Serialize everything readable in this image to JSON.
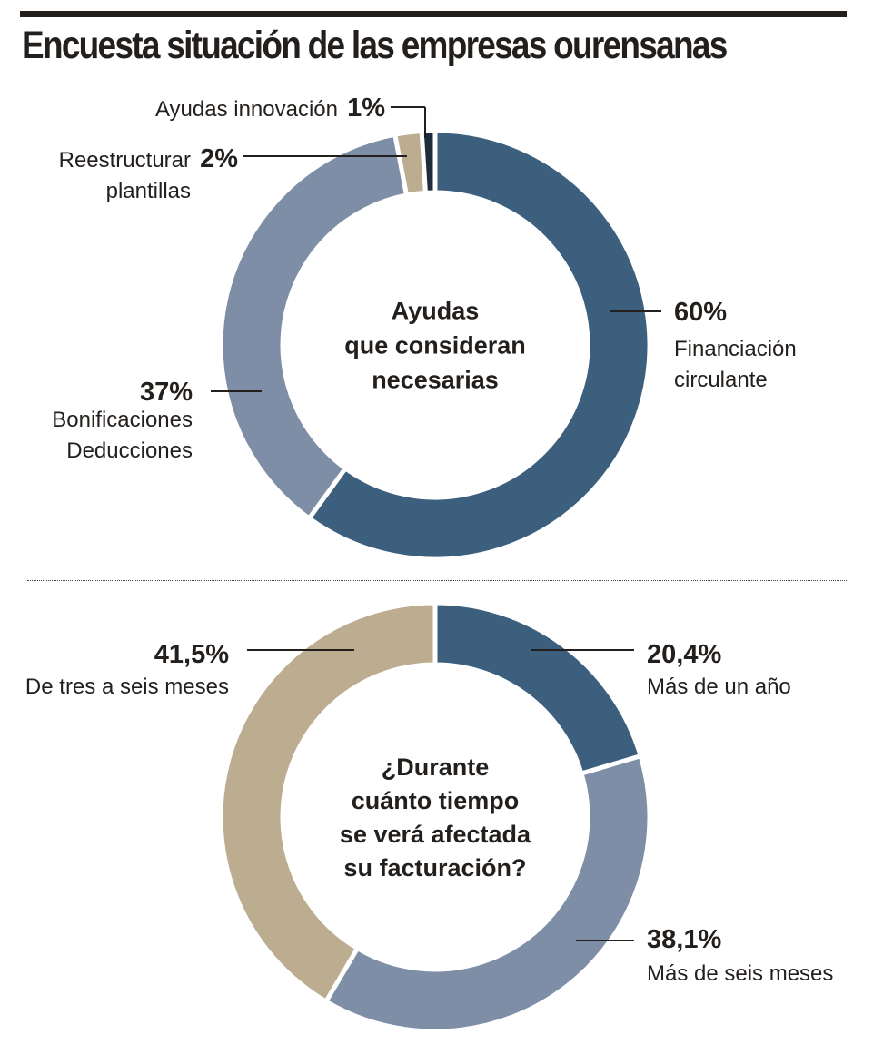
{
  "title": "Encuesta situación de las empresas ourensanas",
  "colors": {
    "dark_blue": "#3c5f7d",
    "gray_blue": "#7d8ea6",
    "beige": "#bcac90",
    "navy": "#1f2c3a",
    "text": "#231f1c"
  },
  "chart_data": [
    {
      "type": "pie",
      "variant": "donut",
      "center_label": [
        "Ayudas",
        "que consideran",
        "necesarias"
      ],
      "slices": [
        {
          "value_label": "60%",
          "value": 60,
          "label": [
            "Financiación",
            "circulante"
          ],
          "color": "#3c5f7d"
        },
        {
          "value_label": "37%",
          "value": 37,
          "label": [
            "Bonificaciones",
            "Deducciones"
          ],
          "color": "#7d8ea6"
        },
        {
          "value_label": "2%",
          "value": 2,
          "label": [
            "Reestructurar",
            "plantillas"
          ],
          "color": "#bcac90"
        },
        {
          "value_label": "1%",
          "value": 1,
          "label": [
            "Ayudas innovación"
          ],
          "color": "#1f2c3a"
        }
      ]
    },
    {
      "type": "pie",
      "variant": "donut",
      "center_label": [
        "¿Durante",
        "cuánto tiempo",
        "se verá afectada",
        "su facturación?"
      ],
      "slices": [
        {
          "value_label": "20,4%",
          "value": 20.4,
          "label": [
            "Más de un año"
          ],
          "color": "#3c5f7d"
        },
        {
          "value_label": "38,1%",
          "value": 38.1,
          "label": [
            "Más de seis meses"
          ],
          "color": "#7d8ea6"
        },
        {
          "value_label": "41,5%",
          "value": 41.5,
          "label": [
            "De tres a seis meses"
          ],
          "color": "#bcac90"
        }
      ]
    }
  ]
}
